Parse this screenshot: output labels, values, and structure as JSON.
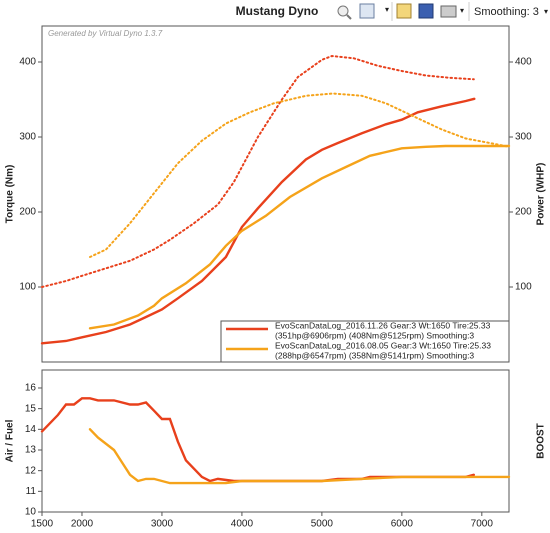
{
  "toolbar": {
    "title": "Mustang Dyno",
    "smoothing": "Smoothing: 3"
  },
  "chart_data": [
    {
      "type": "line",
      "watermark": "Generated by Virtual Dyno 1.3.7",
      "ylabel": "Torque (Nm)",
      "y2label": "Power (WHP)",
      "xlim": [
        1500,
        7340
      ],
      "ylim": [
        0,
        448
      ],
      "y2lim": [
        0,
        448
      ],
      "yticks": [
        100,
        200,
        300,
        400
      ],
      "y2ticks": [
        100,
        200,
        300,
        400
      ],
      "legend": [
        {
          "lines": [
            "EvoScanDataLog_2016.11.26 Gear:3 Wt:1650 Tire:25.33",
            "(351hp@6906rpm) (408Nm@5125rpm) Smoothing:3"
          ],
          "color": "#e8401c"
        },
        {
          "lines": [
            "EvoScanDataLog_2016.08.05 Gear:3 Wt:1650 Tire:25.33",
            "(288hp@6547rpm) (358Nm@5141rpm) Smoothing:3"
          ],
          "color": "#f5a31a"
        }
      ],
      "series": [
        {
          "color": "#e8401c",
          "style": "solid",
          "axis": "y2",
          "x": [
            1500,
            1800,
            2000,
            2300,
            2600,
            2800,
            3000,
            3200,
            3500,
            3800,
            3900,
            4000,
            4200,
            4500,
            4800,
            5000,
            5200,
            5500,
            5800,
            6000,
            6200,
            6500,
            6800,
            6906
          ],
          "values": [
            25,
            28,
            33,
            40,
            50,
            60,
            70,
            85,
            108,
            140,
            160,
            180,
            205,
            240,
            270,
            283,
            292,
            305,
            317,
            323,
            333,
            341,
            348,
            351
          ]
        },
        {
          "color": "#e8401c",
          "style": "dotted",
          "x": [
            1500,
            1800,
            2000,
            2300,
            2600,
            2900,
            3100,
            3400,
            3700,
            3900,
            4000,
            4200,
            4500,
            4700,
            5000,
            5125,
            5400,
            5700,
            6000,
            6300,
            6600,
            6900
          ],
          "values": [
            100,
            108,
            115,
            125,
            135,
            150,
            163,
            185,
            210,
            240,
            260,
            300,
            350,
            380,
            403,
            408,
            405,
            395,
            388,
            382,
            379,
            377
          ]
        },
        {
          "color": "#f5a31a",
          "style": "solid",
          "axis": "y2",
          "x": [
            2100,
            2400,
            2700,
            2900,
            3000,
            3300,
            3600,
            3800,
            4000,
            4300,
            4600,
            5000,
            5300,
            5600,
            6000,
            6300,
            6547,
            7000,
            7340
          ],
          "values": [
            45,
            50,
            62,
            75,
            85,
            105,
            130,
            155,
            175,
            195,
            220,
            245,
            260,
            275,
            285,
            287,
            288,
            288,
            288
          ]
        },
        {
          "color": "#f5a31a",
          "style": "dotted",
          "x": [
            2100,
            2300,
            2600,
            2900,
            3200,
            3500,
            3800,
            4100,
            4400,
            4800,
            5141,
            5500,
            5800,
            6200,
            6500,
            6800,
            7100,
            7340
          ],
          "values": [
            140,
            150,
            185,
            225,
            265,
            295,
            318,
            333,
            345,
            355,
            358,
            355,
            345,
            325,
            310,
            298,
            292,
            287
          ]
        }
      ]
    },
    {
      "type": "line",
      "ylabel": "Air / Fuel",
      "y2label": "BOOST",
      "xlim": [
        1500,
        7340
      ],
      "ylim": [
        10,
        16.87
      ],
      "xticks": [
        1500,
        2000,
        3000,
        4000,
        5000,
        6000,
        7000
      ],
      "yticks": [
        10,
        11,
        12,
        13,
        14,
        15,
        16
      ],
      "series": [
        {
          "color": "#e8401c",
          "style": "solid",
          "x": [
            1500,
            1700,
            1800,
            1900,
            2000,
            2100,
            2200,
            2400,
            2600,
            2700,
            2800,
            2900,
            3000,
            3100,
            3200,
            3300,
            3500,
            3600,
            3700,
            3900,
            4500,
            5000,
            5200,
            5500,
            5600,
            6000,
            6800,
            6900
          ],
          "values": [
            13.9,
            14.7,
            15.2,
            15.2,
            15.5,
            15.5,
            15.4,
            15.4,
            15.2,
            15.2,
            15.3,
            14.9,
            14.5,
            14.5,
            13.4,
            12.5,
            11.7,
            11.5,
            11.6,
            11.5,
            11.5,
            11.5,
            11.6,
            11.6,
            11.7,
            11.7,
            11.7,
            11.8
          ]
        },
        {
          "color": "#f5a31a",
          "style": "solid",
          "x": [
            2100,
            2200,
            2400,
            2500,
            2600,
            2700,
            2800,
            2900,
            3100,
            3500,
            3800,
            4000,
            5000,
            5500,
            6000,
            7000,
            7340
          ],
          "values": [
            14.0,
            13.6,
            13.0,
            12.4,
            11.8,
            11.5,
            11.6,
            11.6,
            11.4,
            11.4,
            11.4,
            11.5,
            11.5,
            11.6,
            11.7,
            11.7,
            11.7
          ]
        }
      ]
    }
  ]
}
